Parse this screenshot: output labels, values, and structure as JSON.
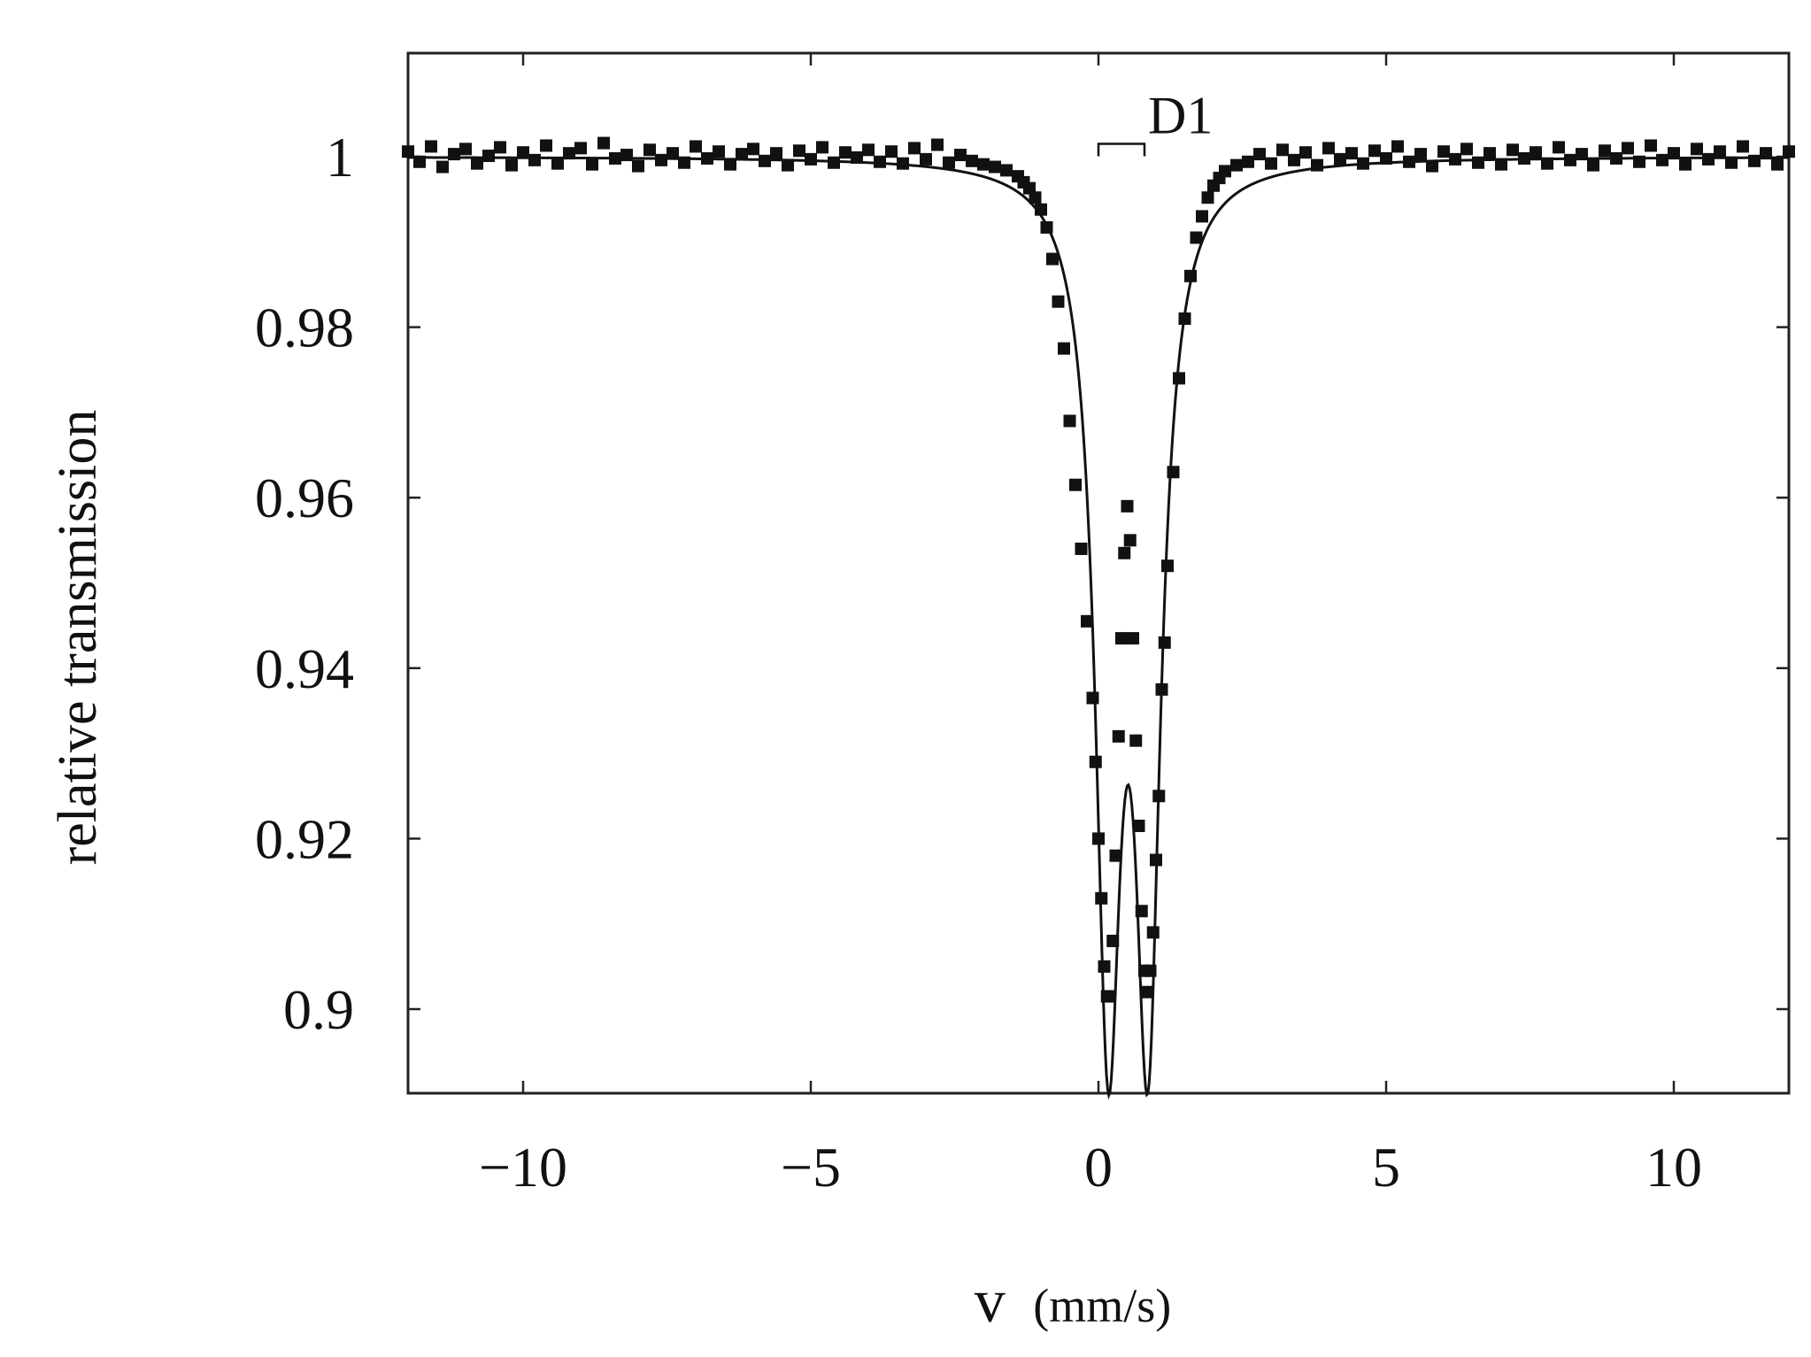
{
  "chart_data": {
    "type": "scatter",
    "title": "",
    "xlabel_var": "v",
    "xlabel_unit": "(mm/s)",
    "ylabel": "relative transmission",
    "xlim": [
      -12,
      12
    ],
    "ylim": [
      0.89,
      1.012
    ],
    "x_ticks": [
      -10,
      -5,
      0,
      5,
      10
    ],
    "x_tick_labels": [
      "−10",
      "−5",
      "0",
      "5",
      "10"
    ],
    "y_ticks": [
      0.9,
      0.92,
      0.94,
      0.96,
      0.98,
      1
    ],
    "y_tick_labels": [
      "0.9",
      "0.92",
      "0.94",
      "0.96",
      "0.98",
      "1"
    ],
    "grid": false,
    "legend": "none",
    "annotation": {
      "label": "D1",
      "x_start": 0.0,
      "x_end": 0.8,
      "y": 1.0015
    },
    "series": [
      {
        "style": "markers",
        "marker": "square",
        "color": "#111111",
        "points": [
          [
            -12.0,
            1.0006
          ],
          [
            -11.8,
            0.9994
          ],
          [
            -11.6,
            1.0012
          ],
          [
            -11.4,
            0.9988
          ],
          [
            -11.2,
            1.0003
          ],
          [
            -11.0,
            1.0009
          ],
          [
            -10.8,
            0.9992
          ],
          [
            -10.6,
            1.0001
          ],
          [
            -10.4,
            1.0011
          ],
          [
            -10.2,
            0.999
          ],
          [
            -10.0,
            1.0005
          ],
          [
            -9.8,
            0.9996
          ],
          [
            -9.6,
            1.0013
          ],
          [
            -9.4,
            0.9992
          ],
          [
            -9.2,
            1.0004
          ],
          [
            -9.0,
            1.001
          ],
          [
            -8.8,
            0.9991
          ],
          [
            -8.6,
            1.0016
          ],
          [
            -8.4,
            0.9998
          ],
          [
            -8.2,
            1.0002
          ],
          [
            -8.0,
            0.9989
          ],
          [
            -7.8,
            1.0008
          ],
          [
            -7.6,
            0.9996
          ],
          [
            -7.4,
            1.0004
          ],
          [
            -7.2,
            0.9993
          ],
          [
            -7.0,
            1.0012
          ],
          [
            -6.8,
            0.9998
          ],
          [
            -6.6,
            1.0006
          ],
          [
            -6.4,
            0.9991
          ],
          [
            -6.2,
            1.0003
          ],
          [
            -6.0,
            1.0009
          ],
          [
            -5.8,
            0.9995
          ],
          [
            -5.6,
            1.0004
          ],
          [
            -5.4,
            0.999
          ],
          [
            -5.2,
            1.0007
          ],
          [
            -5.0,
            0.9997
          ],
          [
            -4.8,
            1.0011
          ],
          [
            -4.6,
            0.9993
          ],
          [
            -4.4,
            1.0005
          ],
          [
            -4.2,
            0.9999
          ],
          [
            -4.0,
            1.0008
          ],
          [
            -3.8,
            0.9994
          ],
          [
            -3.6,
            1.0006
          ],
          [
            -3.4,
            0.9992
          ],
          [
            -3.2,
            1.001
          ],
          [
            -3.0,
            0.9997
          ],
          [
            -2.8,
            1.0014
          ],
          [
            -2.6,
            0.9993
          ],
          [
            -2.4,
            1.0002
          ],
          [
            -2.2,
            0.9995
          ],
          [
            -2.0,
            0.9991
          ],
          [
            -1.8,
            0.9988
          ],
          [
            -1.6,
            0.9984
          ],
          [
            -1.4,
            0.9977
          ],
          [
            -1.3,
            0.997
          ],
          [
            -1.2,
            0.9963
          ],
          [
            -1.1,
            0.9952
          ],
          [
            -1.0,
            0.9938
          ],
          [
            -0.9,
            0.9917
          ],
          [
            -0.8,
            0.988
          ],
          [
            -0.7,
            0.983
          ],
          [
            -0.6,
            0.9775
          ],
          [
            -0.5,
            0.969
          ],
          [
            -0.4,
            0.9615
          ],
          [
            -0.3,
            0.954
          ],
          [
            -0.2,
            0.9455
          ],
          [
            -0.1,
            0.9365
          ],
          [
            -0.05,
            0.929
          ],
          [
            0.0,
            0.92
          ],
          [
            0.05,
            0.913
          ],
          [
            0.1,
            0.905
          ],
          [
            0.15,
            0.9015
          ],
          [
            0.2,
            0.9015
          ],
          [
            0.25,
            0.908
          ],
          [
            0.3,
            0.918
          ],
          [
            0.35,
            0.932
          ],
          [
            0.4,
            0.9435
          ],
          [
            0.45,
            0.9535
          ],
          [
            0.5,
            0.959
          ],
          [
            0.55,
            0.955
          ],
          [
            0.6,
            0.9435
          ],
          [
            0.65,
            0.9315
          ],
          [
            0.7,
            0.9215
          ],
          [
            0.75,
            0.9115
          ],
          [
            0.8,
            0.9045
          ],
          [
            0.85,
            0.902
          ],
          [
            0.9,
            0.9045
          ],
          [
            0.95,
            0.909
          ],
          [
            1.0,
            0.9175
          ],
          [
            1.05,
            0.925
          ],
          [
            1.1,
            0.9375
          ],
          [
            1.15,
            0.943
          ],
          [
            1.2,
            0.952
          ],
          [
            1.3,
            0.963
          ],
          [
            1.4,
            0.974
          ],
          [
            1.5,
            0.981
          ],
          [
            1.6,
            0.986
          ],
          [
            1.7,
            0.9905
          ],
          [
            1.8,
            0.993
          ],
          [
            1.9,
            0.9952
          ],
          [
            2.0,
            0.9966
          ],
          [
            2.1,
            0.9975
          ],
          [
            2.2,
            0.9983
          ],
          [
            2.4,
            0.999
          ],
          [
            2.6,
            0.9994
          ],
          [
            2.8,
            1.0003
          ],
          [
            3.0,
            0.9992
          ],
          [
            3.2,
            1.0008
          ],
          [
            3.4,
            0.9996
          ],
          [
            3.6,
            1.0005
          ],
          [
            3.8,
            0.999
          ],
          [
            4.0,
            1.001
          ],
          [
            4.2,
            0.9997
          ],
          [
            4.4,
            1.0004
          ],
          [
            4.6,
            0.9992
          ],
          [
            4.8,
            1.0007
          ],
          [
            5.0,
            0.9998
          ],
          [
            5.2,
            1.0012
          ],
          [
            5.4,
            0.9994
          ],
          [
            5.6,
            1.0003
          ],
          [
            5.8,
            0.9989
          ],
          [
            6.0,
            1.0006
          ],
          [
            6.2,
            0.9997
          ],
          [
            6.4,
            1.0009
          ],
          [
            6.6,
            0.9993
          ],
          [
            6.8,
            1.0004
          ],
          [
            7.0,
            0.9991
          ],
          [
            7.2,
            1.0008
          ],
          [
            7.4,
            0.9998
          ],
          [
            7.6,
            1.0005
          ],
          [
            7.8,
            0.9992
          ],
          [
            8.0,
            1.0011
          ],
          [
            8.2,
            0.9996
          ],
          [
            8.4,
            1.0003
          ],
          [
            8.6,
            0.999
          ],
          [
            8.8,
            1.0007
          ],
          [
            9.0,
            0.9998
          ],
          [
            9.2,
            1.001
          ],
          [
            9.4,
            0.9994
          ],
          [
            9.6,
            1.0013
          ],
          [
            9.8,
            0.9996
          ],
          [
            10.0,
            1.0004
          ],
          [
            10.2,
            0.9991
          ],
          [
            10.4,
            1.0009
          ],
          [
            10.6,
            0.9997
          ],
          [
            10.8,
            1.0006
          ],
          [
            11.0,
            0.9993
          ],
          [
            11.2,
            1.0012
          ],
          [
            11.4,
            0.9995
          ],
          [
            11.6,
            1.0004
          ],
          [
            11.8,
            0.9991
          ],
          [
            12.0,
            1.0006
          ]
        ]
      },
      {
        "style": "line",
        "color": "#111111",
        "doublet": {
          "baseline": 1.0,
          "peaks": [
            {
              "center": 0.17,
              "depth": 0.097,
              "hwhm": 0.27
            },
            {
              "center": 0.86,
              "depth": 0.097,
              "hwhm": 0.27
            }
          ]
        }
      }
    ]
  }
}
